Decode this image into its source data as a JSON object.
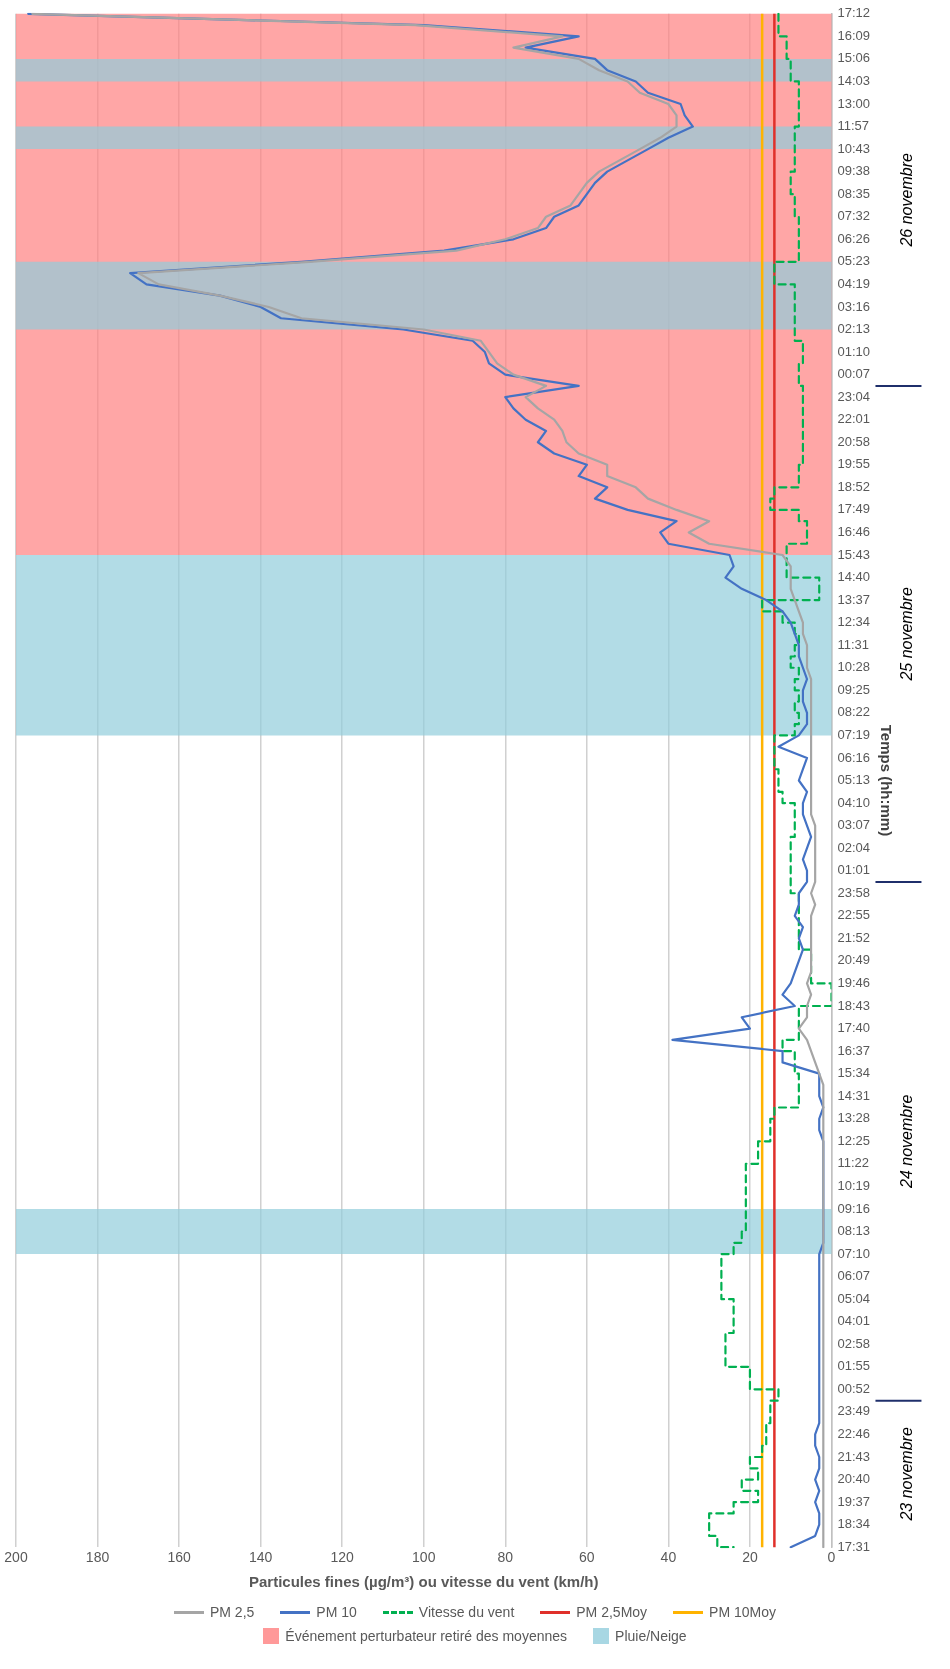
{
  "chart_data": {
    "type": "line",
    "orientation": "horizontal",
    "xlabel": "Particules fines (µg/m³) ou vitesse du vent (km/h)",
    "ylabel": "Temps (hh:mm)",
    "categories": [
      "17:12",
      null,
      "16:09",
      null,
      "15:06",
      null,
      "14:03",
      null,
      "13:00",
      null,
      "11:57",
      null,
      "10:43",
      null,
      "09:38",
      null,
      "08:35",
      null,
      "07:32",
      null,
      "06:26",
      null,
      "05:23",
      null,
      "04:19",
      null,
      "03:16",
      null,
      "02:13",
      null,
      "01:10",
      null,
      "00:07",
      null,
      "23:04",
      null,
      "22:01",
      null,
      "20:58",
      null,
      "19:55",
      null,
      "18:52",
      null,
      "17:49",
      null,
      "16:46",
      null,
      "15:43",
      null,
      "14:40",
      null,
      "13:37",
      null,
      "12:34",
      null,
      "11:31",
      null,
      "10:28",
      null,
      "09:25",
      null,
      "08:22",
      null,
      "07:19",
      null,
      "06:16",
      null,
      "05:13",
      null,
      "04:10",
      null,
      "03:07",
      null,
      "02:04",
      null,
      "01:01",
      null,
      "23:58",
      null,
      "22:55",
      null,
      "21:52",
      null,
      "20:49",
      null,
      "19:46",
      null,
      "18:43",
      null,
      "17:40",
      null,
      "16:37",
      null,
      "15:34",
      null,
      "14:31",
      null,
      "13:28",
      null,
      "12:25",
      null,
      "11:22",
      null,
      "10:19",
      null,
      "09:16",
      null,
      "08:13",
      null,
      "07:10",
      null,
      "06:07",
      null,
      "05:04",
      null,
      "04:01",
      null,
      "02:58",
      null,
      "01:55",
      null,
      "00:52",
      null,
      "23:49",
      null,
      "22:46",
      null,
      "21:43",
      null,
      "20:40",
      null,
      "19:37",
      null,
      "18:34",
      null,
      "17:31"
    ],
    "series": [
      {
        "name": "PM 2,5",
        "color": "#a5a5a5",
        "values": [
          196,
          102,
          66,
          78,
          62,
          57,
          50,
          47,
          40,
          38,
          38,
          42,
          47,
          52,
          57,
          60,
          62,
          64,
          70,
          72,
          80,
          92,
          128,
          170,
          165,
          150,
          138,
          130,
          100,
          86,
          84,
          82,
          78,
          70,
          75,
          72,
          68,
          66,
          65,
          62,
          55,
          55,
          48,
          45,
          38,
          30,
          35,
          30,
          12,
          10,
          10,
          10,
          9,
          8,
          7,
          7,
          6,
          6,
          6,
          5,
          5,
          5,
          5,
          5,
          5,
          5,
          5,
          5,
          5,
          5,
          5,
          5,
          4,
          4,
          4,
          4,
          4,
          4,
          5,
          4,
          5,
          5,
          5,
          5,
          5,
          5,
          6,
          5,
          6,
          6,
          8,
          6,
          5,
          4,
          3,
          2,
          2,
          2,
          2,
          2,
          2,
          2,
          2,
          2,
          2,
          2,
          2,
          2,
          2,
          2,
          2,
          2,
          2,
          2,
          2,
          2,
          2,
          2,
          2,
          2,
          2,
          2,
          2,
          2,
          2,
          2,
          2,
          2,
          2,
          2,
          2,
          2,
          2,
          2,
          2,
          2,
          2
        ]
      },
      {
        "name": "PM 10",
        "color": "#4472c4",
        "values": [
          197,
          100,
          62,
          75,
          58,
          55,
          48,
          45,
          37,
          36,
          34,
          40,
          45,
          50,
          55,
          58,
          60,
          62,
          68,
          70,
          78,
          95,
          130,
          172,
          168,
          150,
          140,
          135,
          105,
          88,
          85,
          84,
          80,
          62,
          80,
          78,
          75,
          70,
          72,
          68,
          60,
          62,
          55,
          58,
          50,
          38,
          42,
          40,
          25,
          24,
          26,
          22,
          16,
          12,
          10,
          9,
          8,
          8,
          7,
          6,
          7,
          7,
          6,
          6,
          8,
          13,
          6,
          7,
          8,
          6,
          7,
          7,
          6,
          5,
          6,
          7,
          6,
          6,
          8,
          8,
          9,
          7,
          8,
          7,
          8,
          9,
          10,
          12,
          9,
          22,
          20,
          39,
          12,
          12,
          3,
          3,
          3,
          2,
          3,
          3,
          2,
          2,
          2,
          2,
          2,
          2,
          2,
          2,
          2,
          2,
          3,
          3,
          3,
          3,
          3,
          3,
          3,
          3,
          3,
          3,
          3,
          3,
          3,
          3,
          3,
          3,
          4,
          4,
          3,
          3,
          4,
          3,
          4,
          3,
          3,
          4,
          10
        ]
      },
      {
        "name": "Vitesse du vent",
        "type": "step",
        "line_style": "dashed",
        "color": "#00b050",
        "values": [
          13,
          13,
          11,
          11,
          10,
          10,
          8,
          8,
          8,
          8,
          9,
          9,
          9,
          9,
          10,
          10,
          9,
          9,
          8,
          8,
          8,
          8,
          14,
          14,
          9,
          9,
          9,
          9,
          9,
          7,
          7,
          8,
          8,
          7,
          7,
          7,
          7,
          7,
          7,
          7,
          8,
          8,
          14,
          15,
          8,
          6,
          6,
          11,
          11,
          11,
          3,
          3,
          17,
          12,
          9,
          8,
          9,
          10,
          8,
          9,
          8,
          9,
          8,
          9,
          14,
          14,
          14,
          13,
          13,
          12,
          9,
          9,
          9,
          10,
          10,
          10,
          10,
          10,
          8,
          8,
          8,
          8,
          8,
          5,
          5,
          5,
          0,
          0,
          8,
          8,
          8,
          12,
          9,
          9,
          8,
          8,
          8,
          14,
          15,
          15,
          18,
          18,
          21,
          21,
          21,
          21,
          21,
          21,
          22,
          24,
          27,
          27,
          27,
          27,
          24,
          24,
          24,
          26,
          26,
          26,
          20,
          20,
          13,
          15,
          15,
          16,
          16,
          17,
          20,
          18,
          22,
          18,
          24,
          30,
          30,
          28,
          24
        ]
      }
    ],
    "ref_lines": [
      {
        "axis": "x",
        "value": 14,
        "label": "PM 2,5Moy",
        "color": "#e0302a"
      },
      {
        "axis": "x",
        "value": 17,
        "label": "PM 10Moy",
        "color": "#ffb300"
      }
    ],
    "bands": [
      {
        "axis": "y",
        "from": "17:12",
        "to": "15:43",
        "label": "Événement perturbateur retiré des moyennes",
        "color": "#ff8080"
      },
      {
        "axis": "y",
        "from": "09:16",
        "to": "07:10",
        "label": "Pluie/Neige",
        "color": "#92cddc"
      },
      {
        "axis": "y",
        "from": "15:43",
        "to": "07:19",
        "color": "#92cddc"
      },
      {
        "axis": "y",
        "from": "05:23",
        "to": "02:13",
        "color": "#92cddc"
      },
      {
        "axis": "y",
        "from": "11:57",
        "to": "10:43",
        "color": "#92cddc"
      },
      {
        "axis": "y",
        "from": "15:06",
        "to": "14:03",
        "color": "#92cddc"
      }
    ],
    "annotations": [
      "23 novembre",
      "24 novembre",
      "25 novembre",
      "26 novembre"
    ],
    "xlim": [
      200,
      0
    ],
    "xticks": [
      0,
      20,
      40,
      60,
      80,
      100,
      120,
      140,
      160,
      180,
      200
    ],
    "grid": "x",
    "marker": "none",
    "legend": "bottom"
  }
}
